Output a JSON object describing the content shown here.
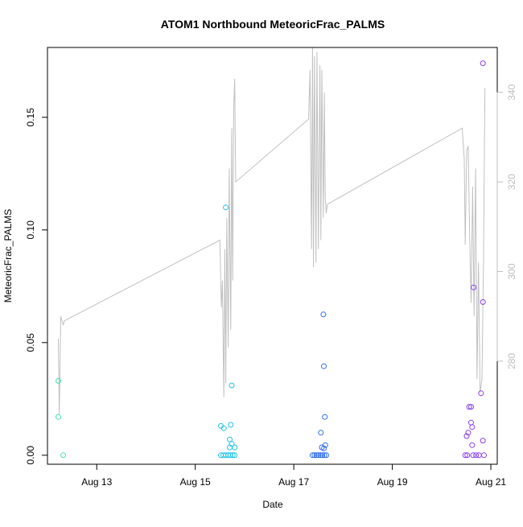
{
  "chart_data": {
    "type": "scatter",
    "title": "ATOM1 Northbound MeteoricFrac_PALMS",
    "xlabel": "Date",
    "ylabel": "MeteoricFrac_PALMS",
    "x_ticks": [
      "Aug 13",
      "Aug 15",
      "Aug 17",
      "Aug 19",
      "Aug 21"
    ],
    "x_tick_days": [
      13,
      15,
      17,
      19,
      21
    ],
    "xlim_days": [
      12.0,
      21.13
    ],
    "y_ticks": [
      "0.00",
      "0.05",
      "0.10",
      "0.15"
    ],
    "ylim": [
      -0.004,
      0.181
    ],
    "y2_ticks": [
      "280",
      "300",
      "320",
      "340"
    ],
    "y2lim": [
      257,
      350
    ],
    "y2_color": "#bebebe",
    "line_color": "#c0c0c0",
    "grid": false,
    "legend": "none",
    "points": [
      {
        "day": 12.22,
        "y": 0.033,
        "color": "#3ee6a8"
      },
      {
        "day": 12.22,
        "y": 0.017,
        "color": "#3ee6a8"
      },
      {
        "day": 12.32,
        "y": 0.0,
        "color": "#3ee6a8"
      },
      {
        "day": 15.62,
        "y": 0.11,
        "color": "#22c4e4"
      },
      {
        "day": 15.52,
        "y": 0.013,
        "color": "#22c4e4"
      },
      {
        "day": 15.58,
        "y": 0.012,
        "color": "#22c4e4"
      },
      {
        "day": 15.74,
        "y": 0.031,
        "color": "#22c4e4"
      },
      {
        "day": 15.72,
        "y": 0.0135,
        "color": "#22c4e4"
      },
      {
        "day": 15.7,
        "y": 0.007,
        "color": "#22c4e4"
      },
      {
        "day": 15.74,
        "y": 0.005,
        "color": "#22c4e4"
      },
      {
        "day": 15.7,
        "y": 0.0035,
        "color": "#22c4e4"
      },
      {
        "day": 15.8,
        "y": 0.0035,
        "color": "#22c4e4"
      },
      {
        "day": 15.52,
        "y": 0.0,
        "color": "#22c4e4"
      },
      {
        "day": 15.57,
        "y": 0.0,
        "color": "#22c4e4"
      },
      {
        "day": 15.62,
        "y": 0.0,
        "color": "#22c4e4"
      },
      {
        "day": 15.67,
        "y": 0.0,
        "color": "#22c4e4"
      },
      {
        "day": 15.71,
        "y": 0.0,
        "color": "#22c4e4"
      },
      {
        "day": 15.76,
        "y": 0.0,
        "color": "#22c4e4"
      },
      {
        "day": 15.8,
        "y": 0.0,
        "color": "#22c4e4"
      },
      {
        "day": 17.6,
        "y": 0.0625,
        "color": "#2f6df0"
      },
      {
        "day": 17.61,
        "y": 0.0395,
        "color": "#2f6df0"
      },
      {
        "day": 17.63,
        "y": 0.017,
        "color": "#2f6df0"
      },
      {
        "day": 17.55,
        "y": 0.01,
        "color": "#2f6df0"
      },
      {
        "day": 17.64,
        "y": 0.0045,
        "color": "#2f6df0"
      },
      {
        "day": 17.57,
        "y": 0.0035,
        "color": "#2f6df0"
      },
      {
        "day": 17.61,
        "y": 0.003,
        "color": "#2f6df0"
      },
      {
        "day": 17.38,
        "y": 0.0,
        "color": "#2f6df0"
      },
      {
        "day": 17.42,
        "y": 0.0,
        "color": "#2f6df0"
      },
      {
        "day": 17.46,
        "y": 0.0,
        "color": "#2f6df0"
      },
      {
        "day": 17.5,
        "y": 0.0,
        "color": "#2f6df0"
      },
      {
        "day": 17.54,
        "y": 0.0,
        "color": "#2f6df0"
      },
      {
        "day": 17.58,
        "y": 0.0,
        "color": "#2f6df0"
      },
      {
        "day": 17.62,
        "y": 0.0,
        "color": "#2f6df0"
      },
      {
        "day": 17.66,
        "y": 0.0,
        "color": "#2f6df0"
      },
      {
        "day": 20.84,
        "y": 0.174,
        "color": "#8a3ff0"
      },
      {
        "day": 20.65,
        "y": 0.0745,
        "color": "#8a3ff0"
      },
      {
        "day": 20.84,
        "y": 0.068,
        "color": "#8a3ff0"
      },
      {
        "day": 20.8,
        "y": 0.0275,
        "color": "#8a3ff0"
      },
      {
        "day": 20.56,
        "y": 0.0215,
        "color": "#8a3ff0"
      },
      {
        "day": 20.6,
        "y": 0.0215,
        "color": "#8a3ff0"
      },
      {
        "day": 20.6,
        "y": 0.0145,
        "color": "#8a3ff0"
      },
      {
        "day": 20.62,
        "y": 0.0125,
        "color": "#8a3ff0"
      },
      {
        "day": 20.54,
        "y": 0.01,
        "color": "#8a3ff0"
      },
      {
        "day": 20.51,
        "y": 0.0085,
        "color": "#8a3ff0"
      },
      {
        "day": 20.84,
        "y": 0.0065,
        "color": "#8a3ff0"
      },
      {
        "day": 20.62,
        "y": 0.0045,
        "color": "#8a3ff0"
      },
      {
        "day": 20.48,
        "y": 0.0,
        "color": "#8a3ff0"
      },
      {
        "day": 20.52,
        "y": 0.0,
        "color": "#8a3ff0"
      },
      {
        "day": 20.64,
        "y": 0.0,
        "color": "#8a3ff0"
      },
      {
        "day": 20.7,
        "y": 0.0,
        "color": "#8a3ff0"
      },
      {
        "day": 20.76,
        "y": 0.0,
        "color": "#8a3ff0"
      },
      {
        "day": 20.86,
        "y": 0.0,
        "color": "#8a3ff0"
      }
    ],
    "line": [
      [
        12.22,
        285
      ],
      [
        12.24,
        268
      ],
      [
        12.27,
        290
      ],
      [
        12.32,
        288
      ],
      [
        12.34,
        289
      ],
      [
        15.5,
        307
      ],
      [
        15.53,
        292
      ],
      [
        15.55,
        298
      ],
      [
        15.58,
        272
      ],
      [
        15.6,
        305
      ],
      [
        15.62,
        275
      ],
      [
        15.64,
        312
      ],
      [
        15.67,
        283
      ],
      [
        15.69,
        323
      ],
      [
        15.72,
        287
      ],
      [
        15.74,
        332
      ],
      [
        15.76,
        298
      ],
      [
        15.78,
        336
      ],
      [
        15.8,
        343
      ],
      [
        15.82,
        320
      ],
      [
        17.3,
        334
      ],
      [
        17.33,
        345
      ],
      [
        17.36,
        305
      ],
      [
        17.38,
        350
      ],
      [
        17.4,
        301
      ],
      [
        17.42,
        348
      ],
      [
        17.45,
        302
      ],
      [
        17.47,
        349
      ],
      [
        17.5,
        305
      ],
      [
        17.53,
        346
      ],
      [
        17.55,
        307
      ],
      [
        17.57,
        345
      ],
      [
        17.6,
        312
      ],
      [
        17.62,
        340
      ],
      [
        17.64,
        316
      ],
      [
        17.66,
        313
      ],
      [
        17.68,
        315
      ],
      [
        20.42,
        332
      ],
      [
        20.46,
        325
      ],
      [
        20.48,
        306
      ],
      [
        20.51,
        327
      ],
      [
        20.54,
        328
      ],
      [
        20.57,
        308
      ],
      [
        20.6,
        293
      ],
      [
        20.63,
        319
      ],
      [
        20.66,
        290
      ],
      [
        20.69,
        323
      ],
      [
        20.72,
        276
      ],
      [
        20.75,
        302
      ],
      [
        20.78,
        273
      ],
      [
        20.82,
        276
      ],
      [
        20.85,
        302
      ],
      [
        20.88,
        341
      ]
    ]
  }
}
